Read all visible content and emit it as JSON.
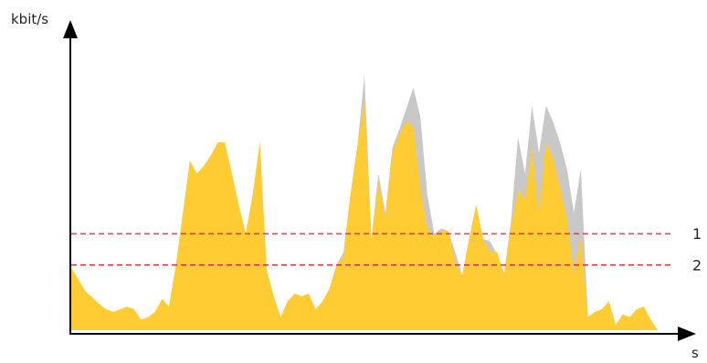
{
  "chart_data": {
    "type": "area",
    "xlabel": "s",
    "ylabel": "kbit/s",
    "grid": false,
    "legend": "none",
    "xlim": [
      0,
      100
    ],
    "ylim": [
      0,
      100
    ],
    "series": [
      {
        "color": "#c8c8c8",
        "points": [
          [
            0,
            24
          ],
          [
            2,
            15
          ],
          [
            4,
            10
          ],
          [
            5,
            8
          ],
          [
            6,
            7
          ],
          [
            7,
            8
          ],
          [
            8,
            9
          ],
          [
            9,
            8
          ],
          [
            10,
            4
          ],
          [
            11,
            5
          ],
          [
            12,
            7
          ],
          [
            13,
            12
          ],
          [
            14,
            9
          ],
          [
            15,
            25
          ],
          [
            16,
            45
          ],
          [
            17,
            65
          ],
          [
            18,
            60
          ],
          [
            19,
            63
          ],
          [
            20,
            67
          ],
          [
            21,
            72
          ],
          [
            22,
            72
          ],
          [
            23,
            60
          ],
          [
            24,
            48
          ],
          [
            25,
            37
          ],
          [
            26,
            52
          ],
          [
            27,
            72
          ],
          [
            28,
            23
          ],
          [
            29,
            13
          ],
          [
            30,
            5
          ],
          [
            31,
            11
          ],
          [
            32,
            14
          ],
          [
            33,
            13
          ],
          [
            34,
            14
          ],
          [
            35,
            8
          ],
          [
            36,
            11
          ],
          [
            37,
            16
          ],
          [
            38,
            25
          ],
          [
            39,
            30
          ],
          [
            40,
            52
          ],
          [
            41,
            71
          ],
          [
            42,
            98
          ],
          [
            43,
            35
          ],
          [
            44,
            60
          ],
          [
            45,
            45
          ],
          [
            46,
            70
          ],
          [
            47,
            77
          ],
          [
            48,
            85
          ],
          [
            49,
            93
          ],
          [
            50,
            82
          ],
          [
            51,
            52
          ],
          [
            52,
            37
          ],
          [
            53,
            39
          ],
          [
            54,
            38
          ],
          [
            55,
            30
          ],
          [
            56,
            21
          ],
          [
            57,
            35
          ],
          [
            58,
            48
          ],
          [
            59,
            35
          ],
          [
            60,
            34
          ],
          [
            61,
            29
          ],
          [
            62,
            22
          ],
          [
            63,
            42
          ],
          [
            64,
            74
          ],
          [
            65,
            60
          ],
          [
            66,
            86
          ],
          [
            67,
            68
          ],
          [
            68,
            86
          ],
          [
            69,
            80
          ],
          [
            70,
            72
          ],
          [
            71,
            62
          ],
          [
            72,
            45
          ],
          [
            73,
            62
          ],
          [
            74,
            5
          ],
          [
            75,
            7
          ],
          [
            76,
            8
          ],
          [
            77,
            11
          ],
          [
            78,
            2
          ],
          [
            79,
            6
          ],
          [
            80,
            5
          ],
          [
            81,
            8
          ],
          [
            82,
            9
          ],
          [
            83,
            4
          ],
          [
            84,
            0
          ]
        ]
      },
      {
        "color": "#ffcc33",
        "points": [
          [
            0,
            24
          ],
          [
            2,
            15
          ],
          [
            4,
            10
          ],
          [
            5,
            8
          ],
          [
            6,
            7
          ],
          [
            7,
            8
          ],
          [
            8,
            9
          ],
          [
            9,
            8
          ],
          [
            10,
            4
          ],
          [
            11,
            5
          ],
          [
            12,
            7
          ],
          [
            13,
            12
          ],
          [
            14,
            9
          ],
          [
            15,
            25
          ],
          [
            16,
            45
          ],
          [
            17,
            65
          ],
          [
            18,
            60
          ],
          [
            19,
            63
          ],
          [
            20,
            67
          ],
          [
            21,
            72
          ],
          [
            22,
            72
          ],
          [
            23,
            60
          ],
          [
            24,
            48
          ],
          [
            25,
            37
          ],
          [
            26,
            52
          ],
          [
            27,
            72
          ],
          [
            28,
            23
          ],
          [
            29,
            13
          ],
          [
            30,
            5
          ],
          [
            31,
            11
          ],
          [
            32,
            14
          ],
          [
            33,
            13
          ],
          [
            34,
            14
          ],
          [
            35,
            8
          ],
          [
            36,
            11
          ],
          [
            37,
            16
          ],
          [
            38,
            25
          ],
          [
            39,
            28
          ],
          [
            40,
            52
          ],
          [
            41,
            71
          ],
          [
            42,
            88
          ],
          [
            43,
            35
          ],
          [
            44,
            57
          ],
          [
            45,
            43
          ],
          [
            46,
            68
          ],
          [
            47,
            75
          ],
          [
            48,
            80
          ],
          [
            49,
            78
          ],
          [
            50,
            55
          ],
          [
            51,
            39
          ],
          [
            52,
            36
          ],
          [
            53,
            38
          ],
          [
            54,
            38
          ],
          [
            55,
            26
          ],
          [
            56,
            21
          ],
          [
            57,
            35
          ],
          [
            58,
            48
          ],
          [
            59,
            35
          ],
          [
            60,
            30
          ],
          [
            61,
            30
          ],
          [
            62,
            21
          ],
          [
            63,
            40
          ],
          [
            64,
            54
          ],
          [
            65,
            50
          ],
          [
            66,
            70
          ],
          [
            67,
            45
          ],
          [
            68,
            72
          ],
          [
            69,
            66
          ],
          [
            70,
            55
          ],
          [
            71,
            43
          ],
          [
            72,
            22
          ],
          [
            73,
            36
          ],
          [
            74,
            5
          ],
          [
            75,
            7
          ],
          [
            76,
            8
          ],
          [
            77,
            11
          ],
          [
            78,
            2
          ],
          [
            79,
            6
          ],
          [
            80,
            5
          ],
          [
            81,
            8
          ],
          [
            82,
            9
          ],
          [
            83,
            4
          ],
          [
            84,
            0
          ]
        ]
      }
    ],
    "reference_lines": [
      {
        "label": "1",
        "value": 37,
        "color": "#c81e1e"
      },
      {
        "label": "2",
        "value": 25,
        "color": "#c81e1e"
      }
    ]
  }
}
